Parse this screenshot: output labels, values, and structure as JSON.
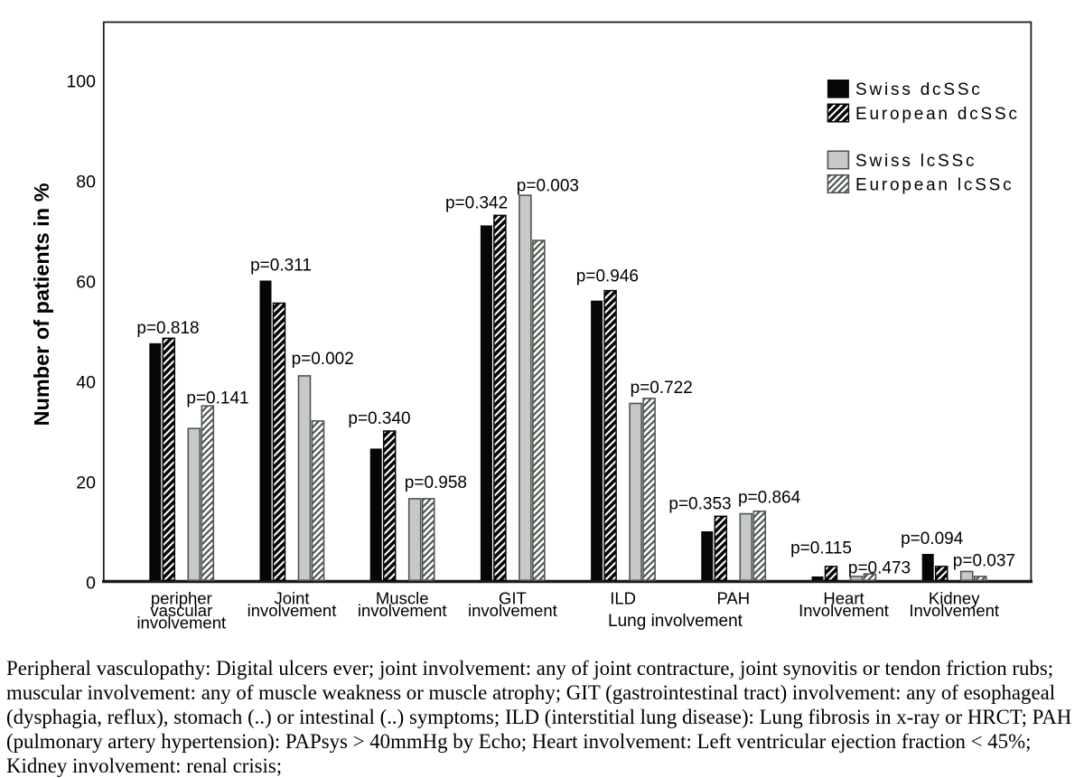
{
  "chart_data": {
    "type": "bar",
    "title": "",
    "ylabel": "Number of patients in %",
    "xlabel": "",
    "ylim": [
      0,
      110
    ],
    "yticks": [
      0,
      20,
      40,
      60,
      80,
      100
    ],
    "grid": false,
    "legend_position": "top-right",
    "categories": [
      [
        "peripher",
        "vascular",
        "involvement"
      ],
      [
        "Joint",
        "involvement"
      ],
      [
        "Muscle",
        "involvement"
      ],
      [
        "GIT",
        "involvement"
      ],
      [
        "ILD"
      ],
      [
        "PAH"
      ],
      [
        "Heart",
        "Involvement"
      ],
      [
        "Kidney",
        "Involvement"
      ]
    ],
    "axis_span_annotation": {
      "label": "Lung involvement",
      "from_category": 4,
      "to_category": 5
    },
    "series": [
      {
        "name": "Swiss dcSSc",
        "style": "solid-black",
        "values": [
          47.5,
          60,
          26.5,
          71,
          56,
          10,
          1,
          5.5
        ]
      },
      {
        "name": "European dcSSc",
        "style": "hatched-black",
        "values": [
          48.5,
          55.5,
          30,
          73,
          58,
          13,
          3,
          3
        ]
      },
      {
        "name": "Swiss lcSSc",
        "style": "solid-gray",
        "values": [
          30.5,
          41,
          16.5,
          77,
          35.5,
          13.5,
          1,
          2
        ]
      },
      {
        "name": "European lcSSc",
        "style": "hatched-gray",
        "values": [
          35,
          32,
          16.5,
          68,
          36.5,
          14,
          1.5,
          1
        ]
      }
    ],
    "p_values": {
      "dcssc": [
        "p=0.818",
        "p=0.311",
        "p=0.340",
        "p=0.342",
        "p=0.946",
        "p=0.353",
        "p=0.115",
        "p=0.094"
      ],
      "lcssc": [
        "p=0.141",
        "p=0.002",
        "p=0.958",
        "p=0.003",
        "p=0.722",
        "p=0.864",
        "p=0.473",
        "p=0.037"
      ]
    },
    "colors": {
      "black": "#060606",
      "gray_fill": "#c6c9c6",
      "gray_stroke": "#4e5750",
      "hatch_line_on_black": "#ffffff",
      "hatch_line_on_white": "#4e5750",
      "text": "#000000",
      "frame": "#1c1c1c"
    }
  },
  "caption": {
    "lines": [
      "Peripheral vasculopathy: Digital ulcers ever; joint involvement: any of joint contracture, joint synovitis or tendon friction rubs;",
      "muscular involvement: any of muscle weakness or muscle atrophy; GIT (gastrointestinal tract) involvement: any of esophageal",
      "(dysphagia, reflux), stomach (..) or intestinal (..) symptoms; ILD (interstitial lung disease): Lung fibrosis in x-ray or HRCT; PAH",
      "(pulmonary artery hypertension): PAPsys > 40mmHg by Echo; Heart involvement: Left ventricular ejection fraction < 45%;",
      "Kidney involvement: renal crisis;"
    ]
  }
}
